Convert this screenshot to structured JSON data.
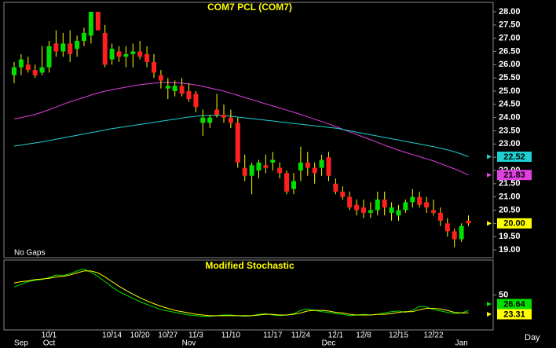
{
  "chart_data": [
    {
      "type": "candlestick",
      "title": "COM7  PCL  (COM7)",
      "note": "No Gaps",
      "up_color": "#00e000",
      "down_color": "#ff2020",
      "close_color": "#ffff00",
      "close_label": "20.00",
      "open": [
        25.6,
        25.9,
        26.0,
        25.8,
        25.7,
        25.9,
        26.8,
        26.5,
        26.8,
        26.6,
        26.9,
        27.1,
        28.0,
        27.2,
        26.2,
        26.5,
        26.3,
        26.4,
        26.5,
        26.4,
        26.1,
        25.6,
        25.1,
        25.0,
        25.2,
        25.0,
        24.9,
        23.8,
        23.8,
        24.3,
        24.1,
        24.0,
        23.8,
        22.1,
        21.8,
        22.0,
        22.2,
        22.3,
        22.1,
        21.9,
        21.3,
        22.0,
        22.3,
        22.1,
        22.1,
        22.5,
        21.5,
        21.2,
        21.0,
        20.7,
        20.6,
        20.4,
        20.5,
        20.9,
        20.4,
        20.3,
        20.5,
        20.8,
        21.0,
        20.8,
        20.5,
        20.4,
        20.0,
        19.7,
        19.4,
        20.1
      ],
      "high": [
        26.1,
        26.4,
        26.3,
        26.0,
        26.7,
        26.9,
        27.3,
        27.2,
        27.3,
        27.1,
        27.4,
        28.0,
        28.0,
        27.5,
        26.8,
        26.7,
        26.7,
        26.8,
        26.9,
        26.7,
        26.4,
        25.8,
        25.5,
        25.4,
        25.5,
        25.3,
        25.0,
        24.3,
        24.1,
        24.9,
        24.5,
        24.3,
        24.0,
        22.6,
        22.3,
        22.4,
        22.6,
        22.7,
        22.3,
        22.0,
        21.9,
        22.9,
        22.7,
        22.3,
        22.6,
        22.7,
        21.7,
        21.4,
        21.2,
        20.9,
        20.9,
        20.8,
        21.2,
        21.2,
        20.8,
        20.7,
        20.9,
        21.3,
        21.2,
        21.0,
        20.9,
        20.6,
        20.2,
        19.8,
        20.0,
        20.3
      ],
      "low": [
        25.3,
        25.6,
        25.7,
        25.5,
        25.6,
        25.7,
        26.3,
        26.3,
        26.1,
        26.3,
        26.7,
        26.8,
        27.3,
        25.9,
        26.0,
        26.1,
        25.9,
        25.9,
        26.2,
        25.9,
        25.5,
        25.1,
        24.7,
        24.8,
        24.8,
        24.6,
        24.2,
        23.3,
        23.6,
        24.0,
        23.8,
        23.6,
        22.1,
        21.6,
        21.1,
        21.7,
        21.9,
        22.0,
        21.7,
        21.1,
        21.1,
        21.6,
        21.8,
        21.5,
        21.8,
        21.6,
        21.1,
        20.9,
        20.5,
        20.3,
        20.2,
        20.2,
        20.3,
        20.3,
        20.1,
        20.1,
        20.4,
        20.6,
        20.6,
        20.4,
        20.3,
        19.9,
        19.5,
        19.1,
        19.3,
        19.9
      ],
      "close": [
        25.9,
        26.2,
        25.8,
        25.6,
        25.9,
        26.7,
        26.5,
        26.8,
        26.4,
        26.9,
        27.2,
        28.0,
        27.3,
        26.0,
        26.6,
        26.3,
        26.4,
        26.5,
        26.3,
        26.1,
        25.7,
        25.4,
        25.2,
        25.2,
        24.9,
        24.7,
        24.4,
        24.0,
        24.0,
        24.1,
        24.0,
        23.8,
        22.3,
        21.8,
        22.2,
        22.3,
        22.1,
        22.4,
        21.9,
        21.2,
        21.6,
        22.3,
        22.1,
        21.9,
        22.4,
        21.8,
        21.2,
        21.0,
        20.6,
        20.5,
        20.4,
        20.5,
        20.9,
        20.6,
        20.6,
        20.5,
        20.8,
        21.0,
        20.7,
        20.6,
        20.4,
        20.1,
        19.7,
        19.4,
        19.9,
        20.0
      ],
      "series": [
        {
          "color": "#e040e0",
          "last_label": "21.83",
          "values": [
            23.95,
            24.0,
            24.06,
            24.12,
            24.2,
            24.3,
            24.4,
            24.5,
            24.6,
            24.68,
            24.76,
            24.85,
            24.93,
            25.0,
            25.05,
            25.1,
            25.15,
            25.2,
            25.24,
            25.27,
            25.3,
            25.32,
            25.33,
            25.32,
            25.3,
            25.27,
            25.23,
            25.18,
            25.12,
            25.06,
            25.0,
            24.92,
            24.84,
            24.76,
            24.68,
            24.6,
            24.52,
            24.44,
            24.36,
            24.28,
            24.2,
            24.12,
            24.03,
            23.94,
            23.85,
            23.76,
            23.66,
            23.56,
            23.46,
            23.36,
            23.26,
            23.16,
            23.06,
            22.96,
            22.86,
            22.77,
            22.68,
            22.6,
            22.52,
            22.44,
            22.36,
            22.26,
            22.16,
            22.06,
            21.95,
            21.83
          ]
        },
        {
          "color": "#20d0d0",
          "last_label": "22.52",
          "values": [
            22.92,
            22.96,
            23.0,
            23.04,
            23.08,
            23.13,
            23.18,
            23.23,
            23.28,
            23.33,
            23.38,
            23.43,
            23.48,
            23.53,
            23.58,
            23.62,
            23.66,
            23.7,
            23.74,
            23.78,
            23.82,
            23.86,
            23.9,
            23.94,
            23.98,
            24.02,
            24.05,
            24.07,
            24.08,
            24.08,
            24.07,
            24.05,
            24.02,
            23.99,
            23.96,
            23.93,
            23.9,
            23.87,
            23.84,
            23.81,
            23.78,
            23.75,
            23.72,
            23.69,
            23.66,
            23.63,
            23.6,
            23.55,
            23.5,
            23.45,
            23.4,
            23.35,
            23.3,
            23.25,
            23.2,
            23.15,
            23.1,
            23.05,
            23.0,
            22.95,
            22.9,
            22.84,
            22.78,
            22.71,
            22.62,
            22.52
          ]
        }
      ],
      "ylim": [
        19,
        28
      ],
      "yticks": [
        {
          "value": 19,
          "label": "19.00"
        },
        {
          "value": 19.5,
          "label": "19.50"
        },
        {
          "value": 20,
          "label": "20.00"
        },
        {
          "value": 20.5,
          "label": "20.50"
        },
        {
          "value": 21,
          "label": "21.00"
        },
        {
          "value": 21.5,
          "label": "21.50"
        },
        {
          "value": 22,
          "label": "22.00"
        },
        {
          "value": 22.5,
          "label": "22.50"
        },
        {
          "value": 23,
          "label": "23.00"
        },
        {
          "value": 23.5,
          "label": "23.50"
        },
        {
          "value": 24,
          "label": "24.00"
        },
        {
          "value": 24.5,
          "label": "24.50"
        },
        {
          "value": 25,
          "label": "25.00"
        },
        {
          "value": 25.5,
          "label": "25.50"
        },
        {
          "value": 26,
          "label": "26.00"
        },
        {
          "value": 26.5,
          "label": "26.50"
        },
        {
          "value": 27,
          "label": "27.00"
        },
        {
          "value": 27.5,
          "label": "27.50"
        },
        {
          "value": 28,
          "label": "28.00"
        }
      ]
    },
    {
      "type": "line",
      "title": "Modified  Stochastic",
      "x_label": "Day",
      "categories": [
        null,
        null,
        null,
        null,
        null,
        "10/1",
        null,
        null,
        null,
        null,
        null,
        null,
        null,
        null,
        "10/14",
        null,
        null,
        null,
        "10/20",
        null,
        null,
        null,
        "10/27",
        null,
        null,
        null,
        "11/3",
        null,
        null,
        null,
        null,
        "11/10",
        null,
        null,
        null,
        null,
        null,
        "11/17",
        null,
        null,
        null,
        "11/24",
        null,
        null,
        null,
        null,
        "12/1",
        null,
        null,
        null,
        "12/8",
        null,
        null,
        null,
        null,
        "12/15",
        null,
        null,
        null,
        null,
        "12/22",
        null,
        null,
        null,
        null,
        null
      ],
      "months": [
        null,
        "Sep",
        null,
        null,
        null,
        "Oct",
        null,
        null,
        null,
        null,
        null,
        null,
        null,
        null,
        null,
        null,
        null,
        null,
        null,
        null,
        null,
        null,
        null,
        null,
        null,
        "Nov",
        null,
        null,
        null,
        null,
        null,
        null,
        null,
        null,
        null,
        null,
        null,
        null,
        null,
        null,
        null,
        null,
        null,
        null,
        null,
        "Dec",
        null,
        null,
        null,
        null,
        null,
        null,
        null,
        null,
        null,
        null,
        null,
        null,
        null,
        null,
        null,
        null,
        null,
        null,
        "Jan",
        null
      ],
      "series": [
        {
          "color": "#00e000",
          "last_label": "26.64",
          "values": [
            62,
            66,
            70,
            72,
            73,
            76,
            80,
            79,
            82,
            86,
            89,
            84,
            78,
            70,
            62,
            55,
            50,
            45,
            40,
            36,
            32,
            28,
            26,
            24,
            22,
            20,
            19,
            18,
            18,
            19,
            20,
            20,
            19,
            18,
            19,
            21,
            22,
            20,
            19,
            20,
            22,
            27,
            29,
            27,
            25,
            24,
            22,
            21,
            19,
            20,
            21,
            20,
            21,
            23,
            25,
            26,
            24,
            27,
            33,
            32,
            28,
            26,
            24,
            22,
            23,
            26.64
          ]
        },
        {
          "color": "#ffff00",
          "last_label": "23.31",
          "values": [
            68,
            70,
            71,
            73,
            74,
            75,
            77,
            78,
            80,
            83,
            86,
            86,
            83,
            77,
            70,
            63,
            57,
            51,
            46,
            41,
            37,
            33,
            30,
            27,
            25,
            23,
            21,
            20,
            19,
            19,
            19,
            19,
            19,
            19,
            19,
            20,
            21,
            21,
            20,
            20,
            21,
            23,
            26,
            27,
            27,
            26,
            24,
            23,
            21,
            20,
            20,
            20,
            21,
            21,
            22,
            24,
            25,
            25,
            28,
            30,
            30,
            29,
            27,
            24,
            23,
            23.31
          ]
        }
      ],
      "ylim": [
        0,
        100
      ],
      "yticks": [
        50
      ]
    }
  ]
}
